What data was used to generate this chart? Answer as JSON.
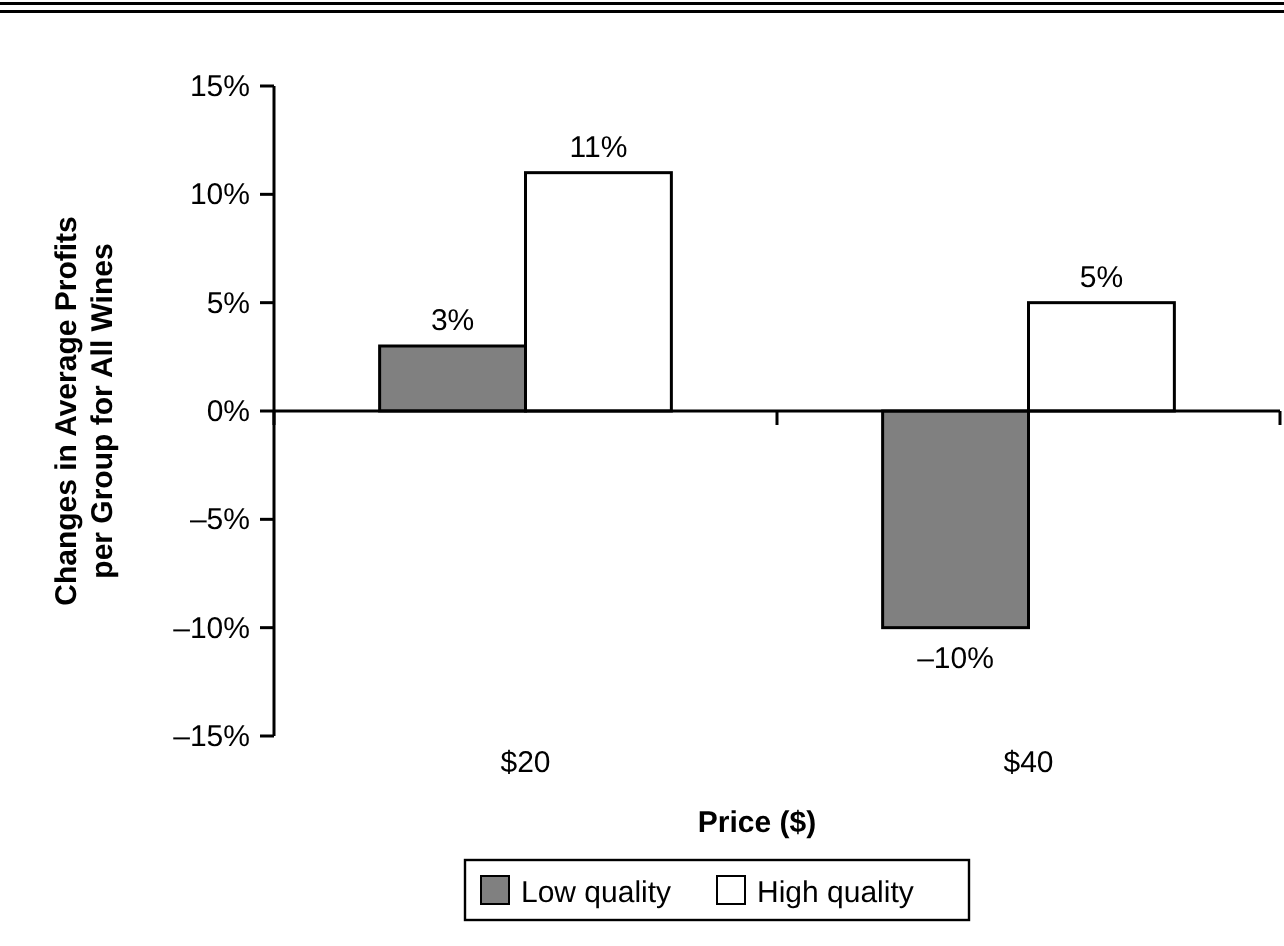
{
  "chart_data": {
    "type": "bar",
    "xlabel": "Price ($)",
    "ylabel": "Changes in Average Profits per Group for All Wines",
    "categories": [
      "$20",
      "$40"
    ],
    "series": [
      {
        "name": "Low quality",
        "color": "#808080",
        "values": [
          3,
          -10
        ],
        "value_labels": [
          "3%",
          "–10%"
        ]
      },
      {
        "name": "High quality",
        "color": "#ffffff",
        "values": [
          11,
          5
        ],
        "value_labels": [
          "11%",
          "5%"
        ]
      }
    ],
    "ylim": [
      -15,
      15
    ],
    "yticks": [
      {
        "value": -15,
        "label": "–15%"
      },
      {
        "value": -10,
        "label": "–10%"
      },
      {
        "value": -5,
        "label": "–5%"
      },
      {
        "value": 0,
        "label": "0%"
      },
      {
        "value": 5,
        "label": "5%"
      },
      {
        "value": 10,
        "label": "10%"
      },
      {
        "value": 15,
        "label": "15%"
      }
    ],
    "legend": "bottom"
  }
}
